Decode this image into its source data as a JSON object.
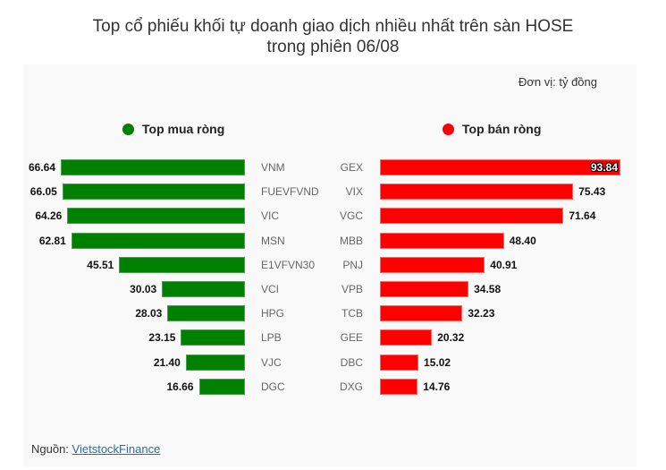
{
  "title": {
    "line1": "Top cổ phiếu khối tự doanh giao dịch nhiều nhất trên sàn HOSE",
    "line2": "trong phiên 06/08"
  },
  "unit_label": "Đơn vị: tỷ đồng",
  "legend": {
    "buy": {
      "label": "Top mua ròng",
      "color": "#008000"
    },
    "sell": {
      "label": "Top bán ròng",
      "color": "#ff0000"
    }
  },
  "source": {
    "prefix": "Nguồn: ",
    "link_text": "VietstockFinance"
  },
  "chart_data": [
    {
      "type": "bar",
      "orientation": "horizontal",
      "title": "Top mua ròng",
      "color": "#008000",
      "categories": [
        "VNM",
        "FUEVFVND",
        "VIC",
        "MSN",
        "E1VFVN30",
        "VCI",
        "HPG",
        "LPB",
        "VJC",
        "DGC"
      ],
      "values": [
        66.64,
        66.05,
        64.26,
        62.81,
        45.51,
        30.03,
        28.03,
        23.15,
        21.4,
        16.66
      ],
      "labels": [
        "66.64",
        "66.05",
        "64.26",
        "62.81",
        "45.51",
        "30.03",
        "28.03",
        "23.15",
        "21.40",
        "16.66"
      ],
      "unit": "tỷ đồng",
      "grid": false
    },
    {
      "type": "bar",
      "orientation": "horizontal",
      "title": "Top bán ròng",
      "color": "#ff0000",
      "categories": [
        "GEX",
        "VIX",
        "VGC",
        "MBB",
        "PNJ",
        "VPB",
        "TCB",
        "GEE",
        "DBC",
        "DXG"
      ],
      "values": [
        93.84,
        75.43,
        71.64,
        48.4,
        40.91,
        34.58,
        32.23,
        20.32,
        15.02,
        14.76
      ],
      "labels": [
        "93.84",
        "75.43",
        "71.64",
        "48.40",
        "40.91",
        "34.58",
        "32.23",
        "20.32",
        "15.02",
        "14.76"
      ],
      "unit": "tỷ đồng",
      "grid": false
    }
  ]
}
